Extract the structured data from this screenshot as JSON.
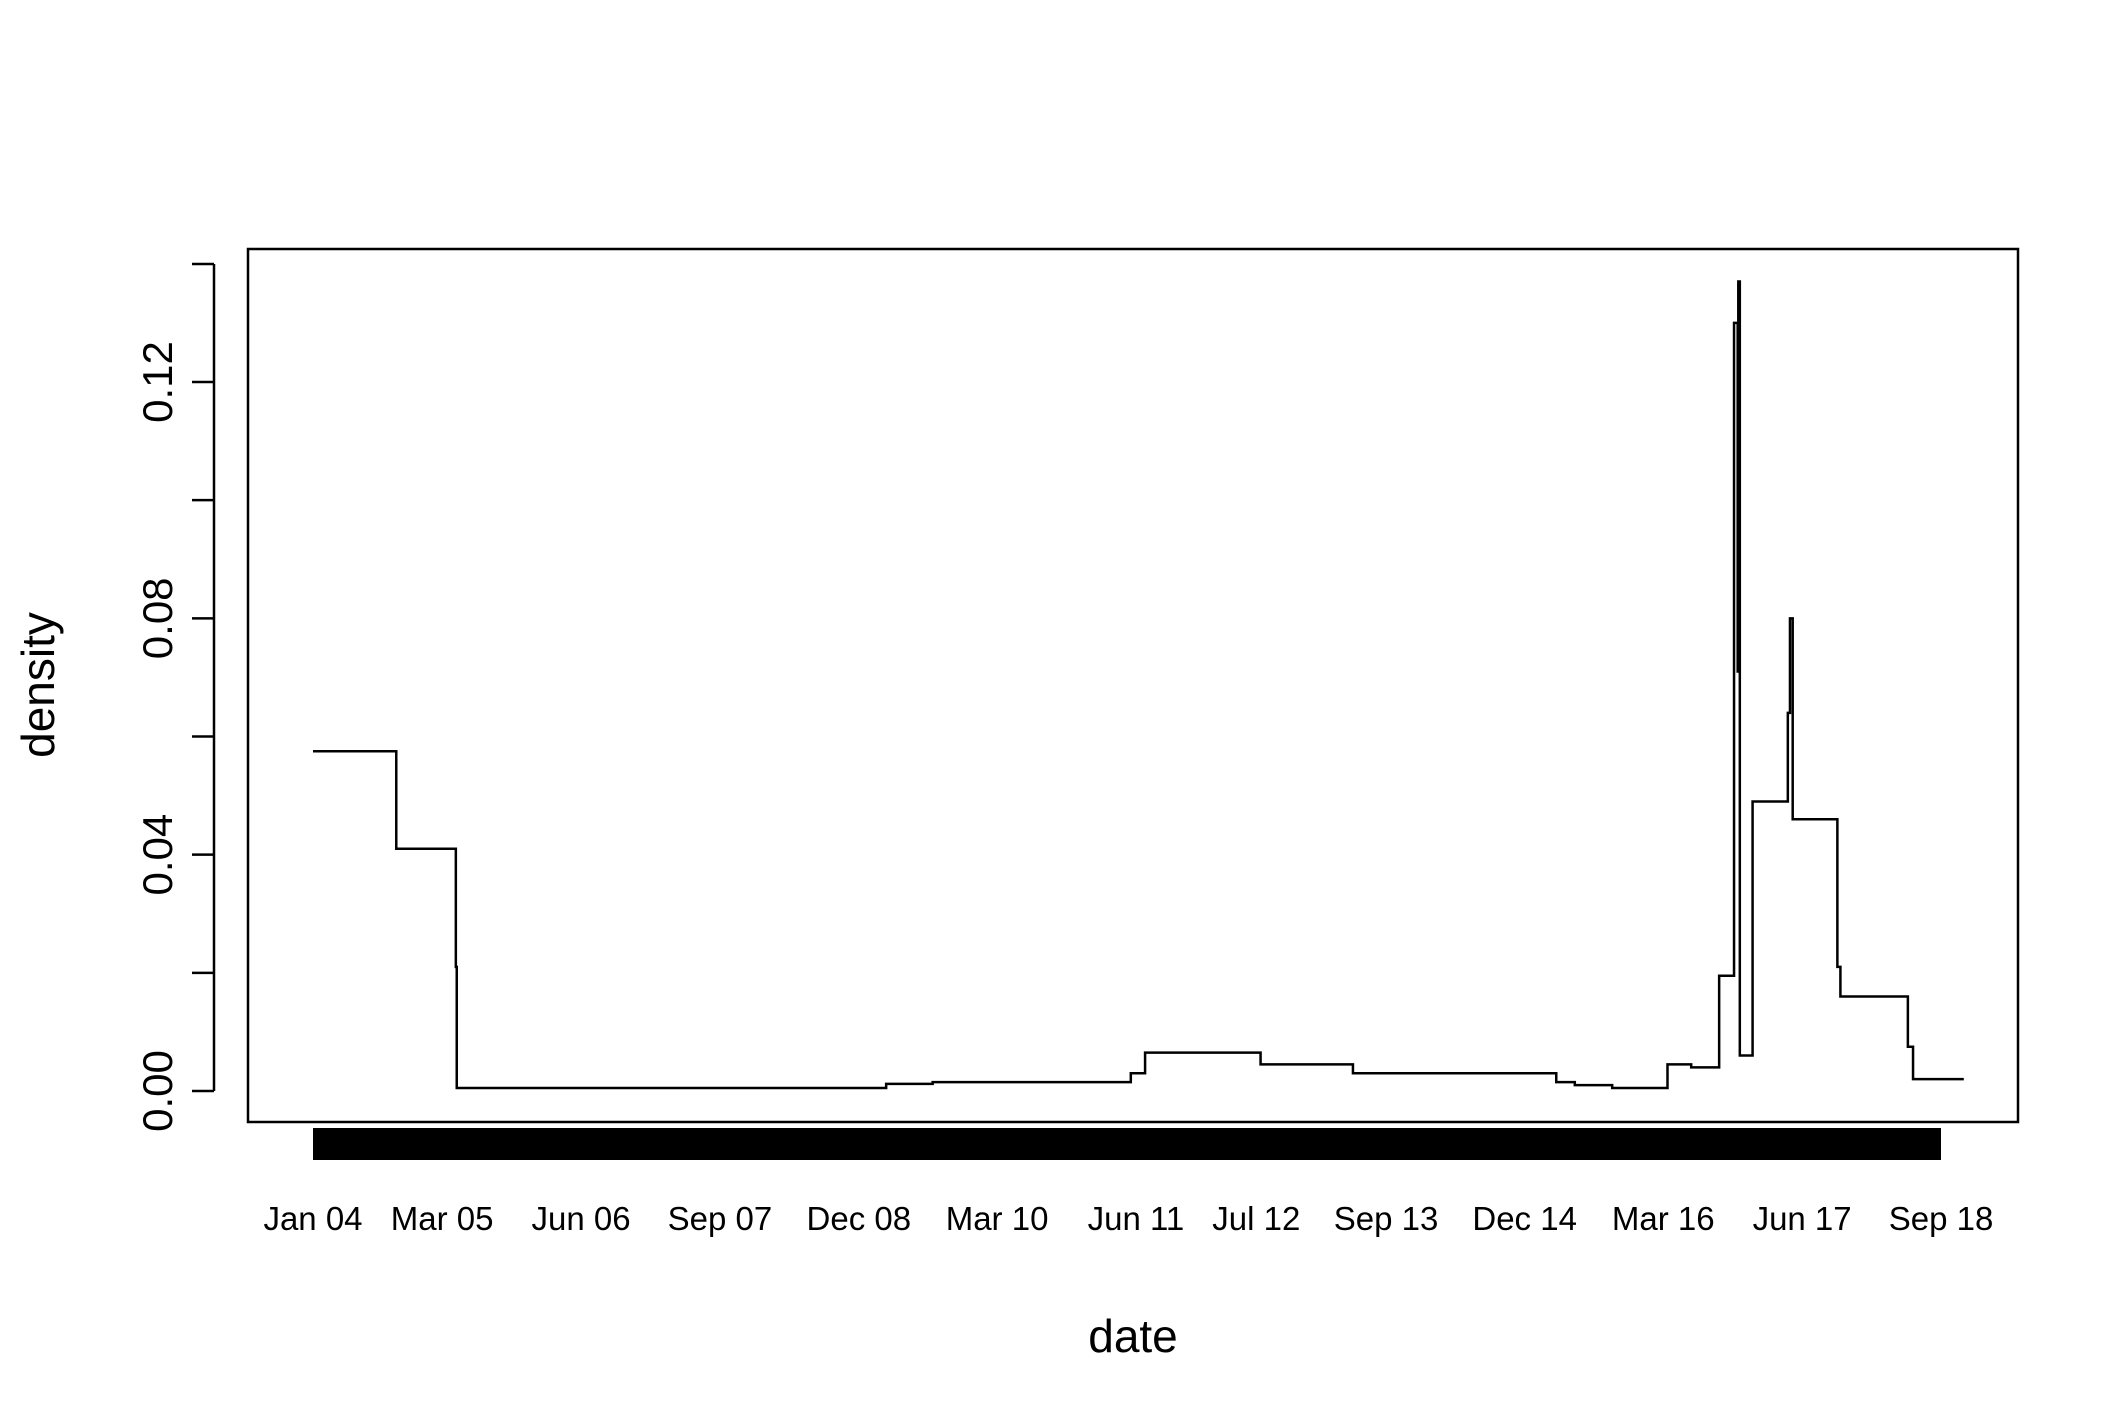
{
  "chart_data": {
    "type": "line",
    "step": true,
    "xlabel": "date",
    "ylabel": "density",
    "ylim": [
      0,
      0.14
    ],
    "grid": false,
    "x_ticks": [
      {
        "date": "2004-01-01",
        "label": "Jan 04"
      },
      {
        "date": "2005-03-01",
        "label": "Mar 05"
      },
      {
        "date": "2006-06-01",
        "label": "Jun 06"
      },
      {
        "date": "2007-09-01",
        "label": "Sep 07"
      },
      {
        "date": "2008-12-01",
        "label": "Dec 08"
      },
      {
        "date": "2010-03-01",
        "label": "Mar 10"
      },
      {
        "date": "2011-06-01",
        "label": "Jun 11"
      },
      {
        "date": "2012-07-01",
        "label": "Jul 12"
      },
      {
        "date": "2013-09-01",
        "label": "Sep 13"
      },
      {
        "date": "2014-12-01",
        "label": "Dec 14"
      },
      {
        "date": "2016-03-01",
        "label": "Mar 16"
      },
      {
        "date": "2017-06-01",
        "label": "Jun 17"
      },
      {
        "date": "2018-09-01",
        "label": "Sep 18"
      }
    ],
    "y_ticks": [
      {
        "value": 0,
        "label": "0.00"
      },
      {
        "value": 0.04,
        "label": "0.04"
      },
      {
        "value": 0.08,
        "label": "0.08"
      },
      {
        "value": 0.12,
        "label": "0.12"
      }
    ],
    "rug": {
      "from": "2004-01-01",
      "to": "2018-09-01"
    },
    "points": [
      {
        "x": "2004-01-01",
        "y": 0.0575
      },
      {
        "x": "2004-10-01",
        "y": 0.041
      },
      {
        "x": "2005-04-15",
        "y": 0.021
      },
      {
        "x": "2005-04-18",
        "y": 0.0005
      },
      {
        "x": "2009-03-01",
        "y": 0.0012
      },
      {
        "x": "2009-08-01",
        "y": 0.0015
      },
      {
        "x": "2011-05-15",
        "y": 0.003
      },
      {
        "x": "2011-07-01",
        "y": 0.0065
      },
      {
        "x": "2012-07-15",
        "y": 0.0045
      },
      {
        "x": "2013-05-15",
        "y": 0.003
      },
      {
        "x": "2015-03-15",
        "y": 0.0015
      },
      {
        "x": "2015-05-15",
        "y": 0.001
      },
      {
        "x": "2015-09-15",
        "y": 0.0005
      },
      {
        "x": "2016-03-15",
        "y": 0.0045
      },
      {
        "x": "2016-06-01",
        "y": 0.004
      },
      {
        "x": "2016-09-01",
        "y": 0.0195
      },
      {
        "x": "2016-10-20",
        "y": 0.13
      },
      {
        "x": "2016-11-01",
        "y": 0.071
      },
      {
        "x": "2016-11-03",
        "y": 0.137
      },
      {
        "x": "2016-11-08",
        "y": 0.006
      },
      {
        "x": "2016-12-20",
        "y": 0.049
      },
      {
        "x": "2017-04-15",
        "y": 0.064
      },
      {
        "x": "2017-04-22",
        "y": 0.08
      },
      {
        "x": "2017-05-01",
        "y": 0.046
      },
      {
        "x": "2017-09-25",
        "y": 0.021
      },
      {
        "x": "2017-10-05",
        "y": 0.016
      },
      {
        "x": "2018-05-15",
        "y": 0.0075
      },
      {
        "x": "2018-06-01",
        "y": 0.002
      },
      {
        "x": "2018-11-15",
        "y": 0.002
      }
    ]
  }
}
